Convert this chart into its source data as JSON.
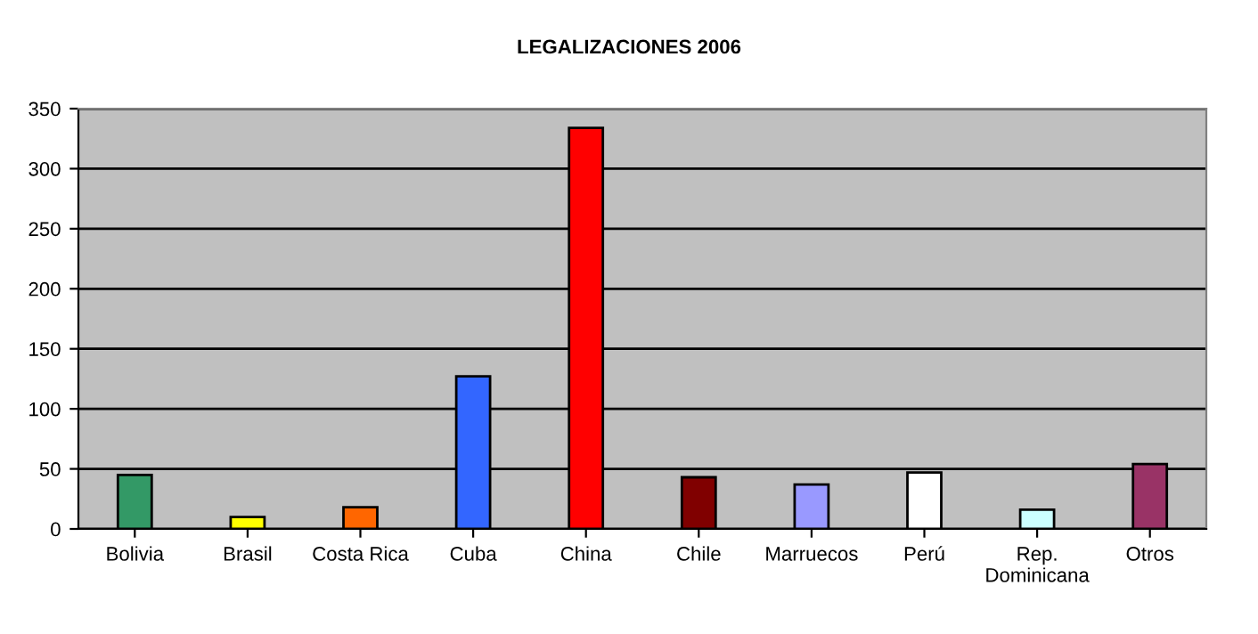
{
  "chart_data": {
    "type": "bar",
    "title": "LEGALIZACIONES 2006",
    "categories": [
      "Bolivia",
      "Brasil",
      "Costa Rica",
      "Cuba",
      "China",
      "Chile",
      "Marruecos",
      "Perú",
      "Rep.\nDominicana",
      "Otros"
    ],
    "values": [
      45,
      10,
      18,
      127,
      334,
      43,
      37,
      47,
      16,
      54
    ],
    "colors": [
      "#339966",
      "#ffff00",
      "#ff6600",
      "#3366ff",
      "#ff0000",
      "#800000",
      "#9999ff",
      "#ffffff",
      "#ccffff",
      "#993366"
    ],
    "ylim": [
      0,
      350
    ],
    "yticks": [
      0,
      50,
      100,
      150,
      200,
      250,
      300,
      350
    ],
    "grid": "y",
    "legend": false
  }
}
